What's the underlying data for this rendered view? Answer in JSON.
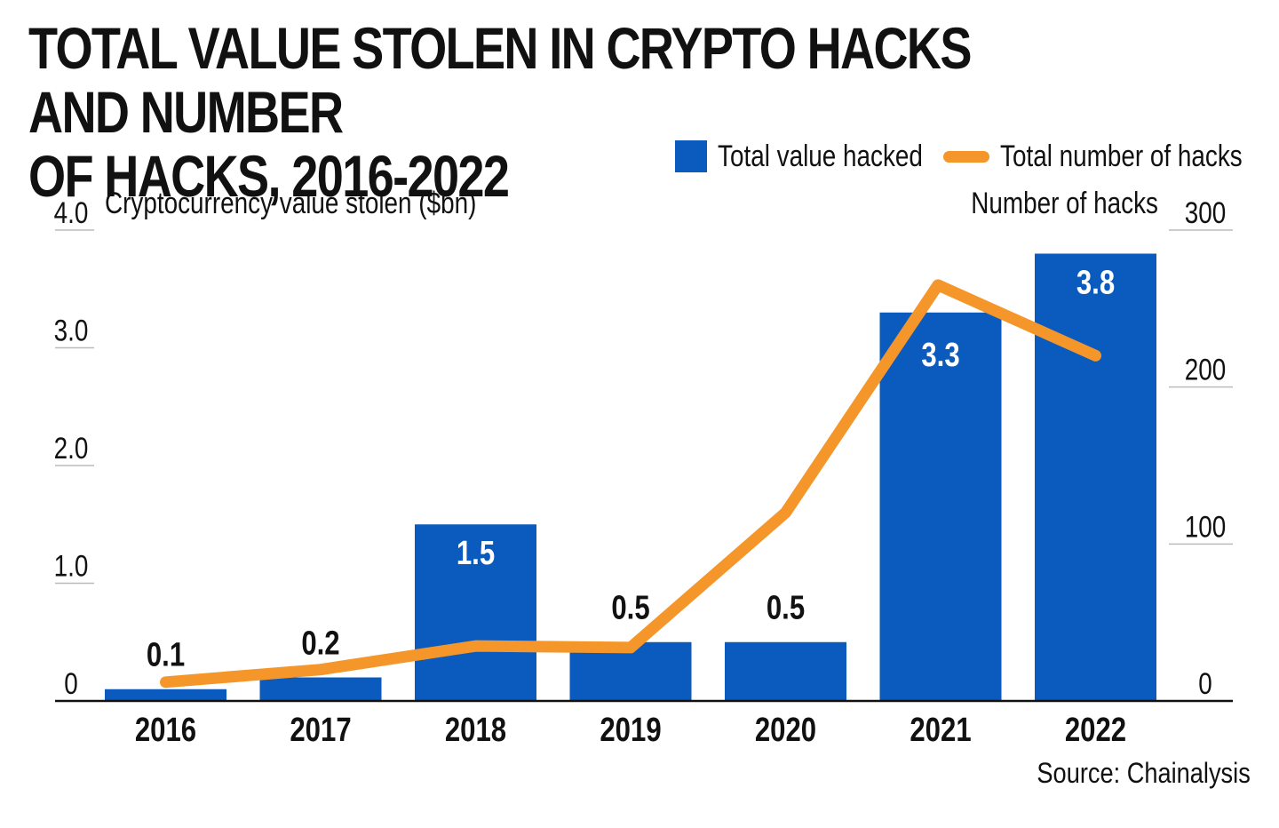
{
  "title": {
    "line1": "TOTAL VALUE STOLEN IN CRYPTO HACKS AND NUMBER",
    "line2": "OF HACKS, 2016-2022"
  },
  "legend": {
    "bar_label": "Total value hacked",
    "line_label": "Total number of hacks"
  },
  "axes": {
    "left_title": "Cryptocurrency value stolen ($bn)",
    "right_title": "Number of hacks"
  },
  "source": "Source: Chainalysis",
  "colors": {
    "bar": "#0a5bbd",
    "line": "#f5962b",
    "text": "#111111",
    "grid": "#bbbbbb"
  },
  "chart_data": {
    "type": "bar",
    "categories": [
      "2016",
      "2017",
      "2018",
      "2019",
      "2020",
      "2021",
      "2022"
    ],
    "series": [
      {
        "name": "Total value hacked",
        "type": "bar",
        "axis": "left",
        "values": [
          0.1,
          0.2,
          1.5,
          0.5,
          0.5,
          3.3,
          3.8
        ],
        "labels": [
          "0.1",
          "0.2",
          "1.5",
          "0.5",
          "0.5",
          "3.3",
          "3.8"
        ]
      },
      {
        "name": "Total number of hacks",
        "type": "line",
        "axis": "right",
        "values": [
          12,
          20,
          35,
          34,
          120,
          265,
          220
        ]
      }
    ],
    "y_left": {
      "label": "Cryptocurrency value stolen ($bn)",
      "range": [
        0,
        4.0
      ],
      "ticks": [
        0,
        1.0,
        2.0,
        3.0,
        4.0
      ],
      "tick_labels": [
        "0",
        "1.0",
        "2.0",
        "3.0",
        "4.0"
      ]
    },
    "y_right": {
      "label": "Number of hacks",
      "range": [
        0,
        300
      ],
      "ticks": [
        0,
        100,
        200,
        300
      ],
      "tick_labels": [
        "0",
        "100",
        "200",
        "300"
      ]
    },
    "legend_position": "top-right",
    "grid": false
  }
}
